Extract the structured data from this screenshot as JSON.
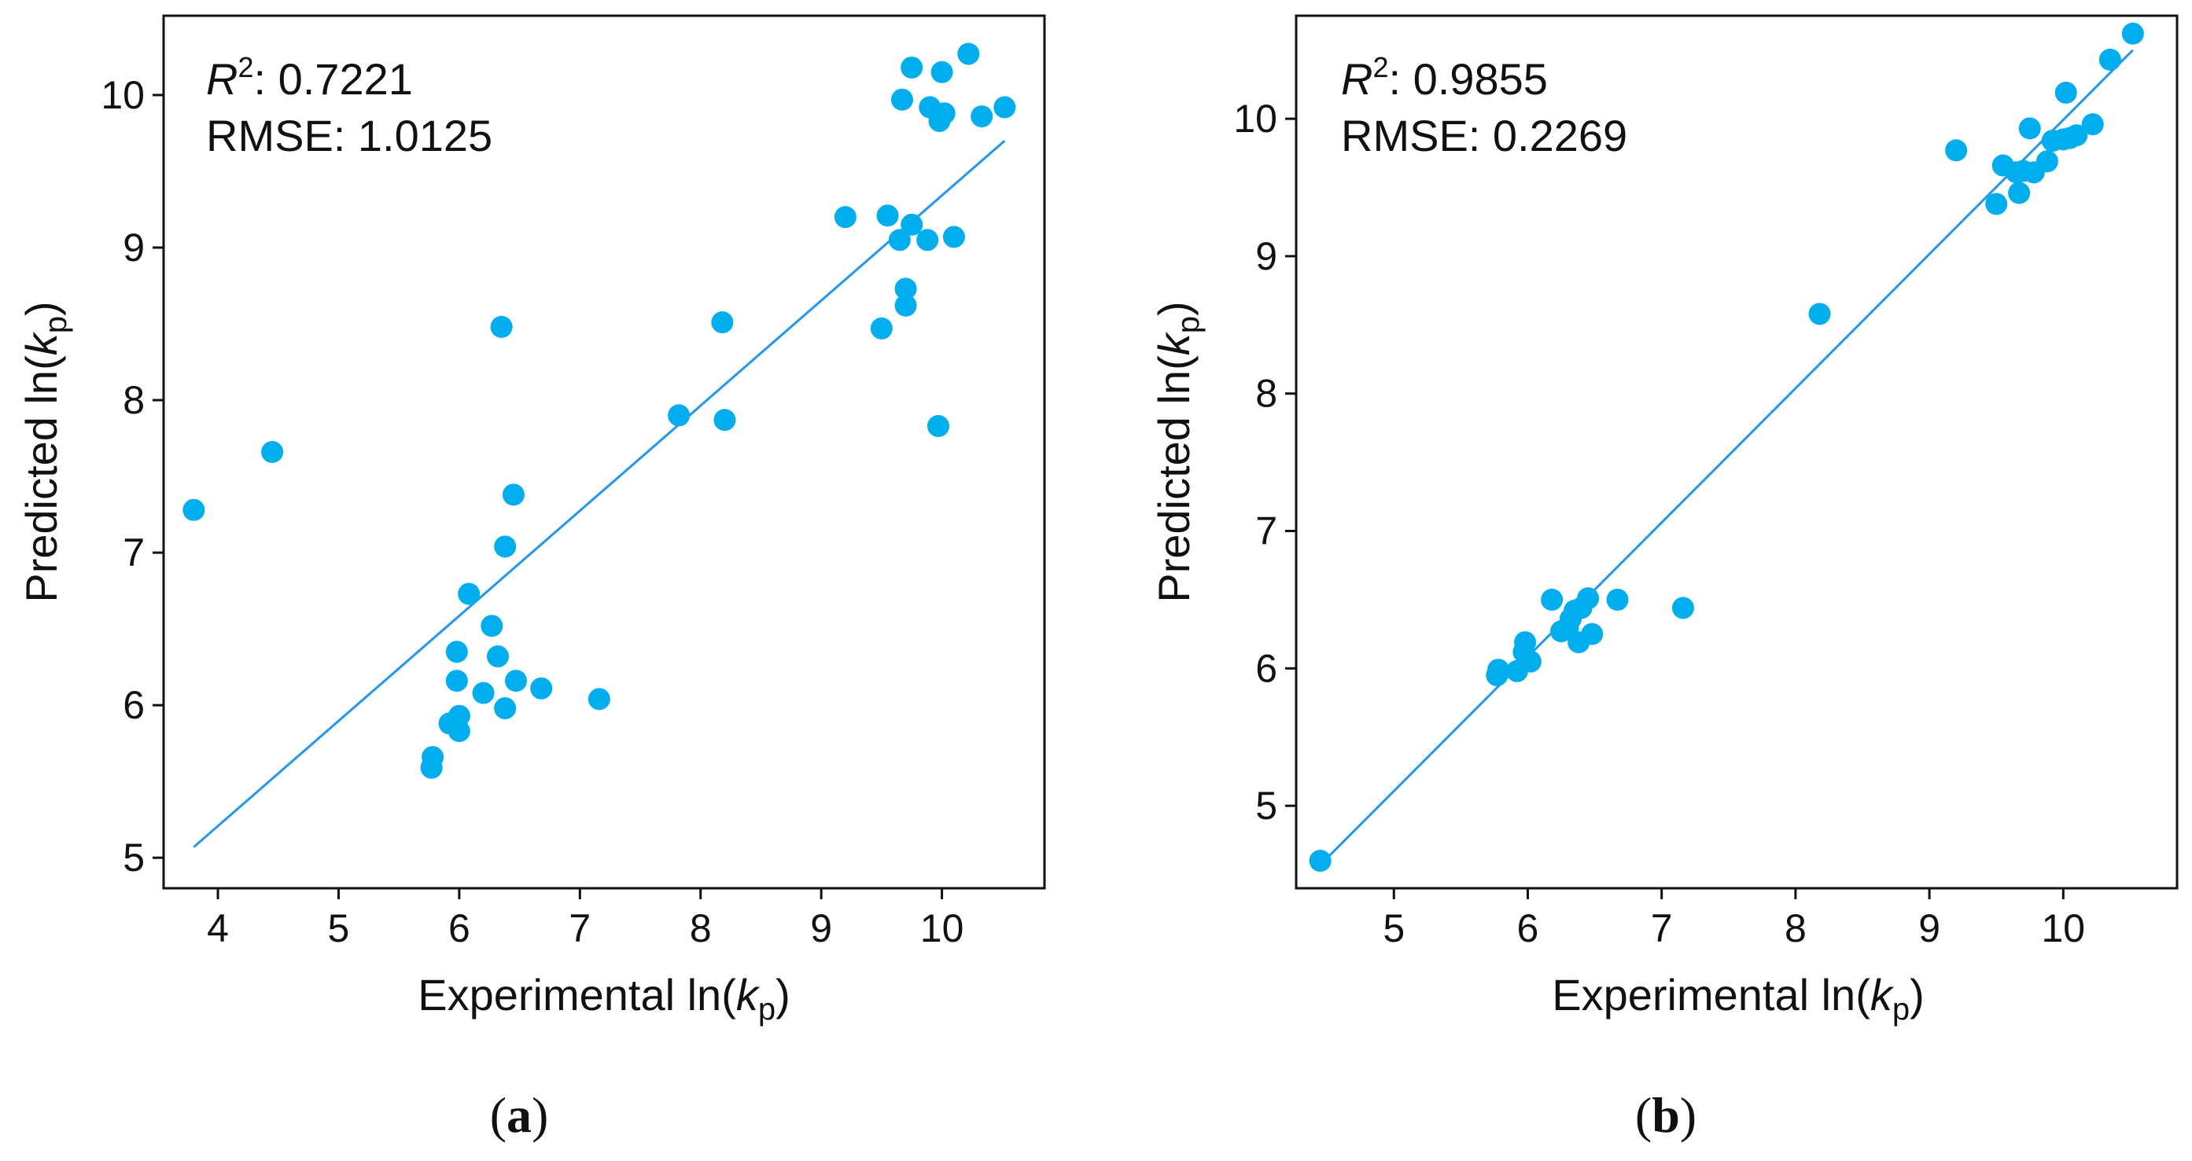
{
  "colors": {
    "point": "#00AEEF",
    "fit_line": "#2196F3",
    "axis": "#111111"
  },
  "chart_data": [
    {
      "type": "scatter",
      "panel_label": "a",
      "stats": {
        "r2_symbol": "R",
        "r2_superscript": "2",
        "r2_value": ": 0.7221",
        "rmse_text": "RMSE: 1.0125"
      },
      "xlabel": {
        "prefix": "Experimental ln(",
        "var": "k",
        "sub": "p",
        "suffix": ")"
      },
      "ylabel": {
        "prefix": "Predicted ln(",
        "var": "k",
        "sub": "p",
        "suffix": ")"
      },
      "xlim": [
        3.55,
        10.85
      ],
      "ylim": [
        4.8,
        10.52
      ],
      "xticks": [
        4,
        5,
        6,
        7,
        8,
        9,
        10
      ],
      "yticks": [
        5,
        6,
        7,
        8,
        9,
        10
      ],
      "fit_line": {
        "x": [
          3.8,
          10.52
        ],
        "y": [
          5.07,
          9.7
        ]
      },
      "points": {
        "x": [
          3.8,
          4.45,
          5.77,
          5.78,
          5.92,
          5.98,
          5.98,
          6.0,
          6.0,
          6.08,
          6.2,
          6.27,
          6.32,
          6.35,
          6.38,
          6.38,
          6.45,
          6.47,
          6.68,
          7.16,
          7.82,
          8.18,
          8.2,
          9.2,
          9.5,
          9.55,
          9.65,
          9.67,
          9.7,
          9.7,
          9.75,
          9.75,
          9.88,
          9.9,
          9.97,
          9.98,
          10.0,
          10.02,
          10.1,
          10.22,
          10.33,
          10.52
        ],
        "y": [
          7.28,
          7.66,
          5.59,
          5.66,
          5.88,
          6.35,
          6.16,
          5.83,
          5.93,
          6.73,
          6.08,
          6.52,
          6.32,
          8.48,
          5.98,
          7.04,
          7.38,
          6.16,
          6.11,
          6.04,
          7.9,
          8.51,
          7.87,
          9.2,
          8.47,
          9.21,
          9.05,
          9.97,
          8.62,
          8.73,
          9.15,
          10.18,
          9.05,
          9.92,
          7.83,
          9.83,
          10.15,
          9.88,
          9.07,
          10.27,
          9.86,
          9.92
        ]
      }
    },
    {
      "type": "scatter",
      "panel_label": "b",
      "stats": {
        "r2_symbol": "R",
        "r2_superscript": "2",
        "r2_value": ": 0.9855",
        "rmse_text": "RMSE: 0.2269"
      },
      "xlabel": {
        "prefix": "Experimental ln(",
        "var": "k",
        "sub": "p",
        "suffix": ")"
      },
      "ylabel": {
        "prefix": "Predicted ln(",
        "var": "k",
        "sub": "p",
        "suffix": ")"
      },
      "xlim": [
        4.27,
        10.85
      ],
      "ylim": [
        4.4,
        10.75
      ],
      "xticks": [
        5,
        6,
        7,
        8,
        9,
        10
      ],
      "yticks": [
        5,
        6,
        7,
        8,
        9,
        10
      ],
      "fit_line": {
        "x": [
          4.45,
          10.52
        ],
        "y": [
          4.57,
          10.5
        ]
      },
      "points": {
        "x": [
          4.45,
          5.77,
          5.78,
          5.92,
          5.97,
          5.98,
          6.02,
          6.18,
          6.25,
          6.3,
          6.32,
          6.35,
          6.38,
          6.4,
          6.45,
          6.48,
          6.67,
          7.16,
          8.18,
          9.2,
          9.5,
          9.55,
          9.65,
          9.67,
          9.7,
          9.75,
          9.78,
          9.88,
          9.92,
          10.0,
          10.02,
          10.05,
          10.1,
          10.22,
          10.35,
          10.52
        ],
        "y": [
          4.6,
          5.95,
          5.99,
          5.98,
          6.12,
          6.19,
          6.05,
          6.5,
          6.27,
          6.3,
          6.36,
          6.42,
          6.19,
          6.44,
          6.51,
          6.25,
          6.5,
          6.44,
          8.58,
          9.77,
          9.38,
          9.66,
          9.61,
          9.46,
          9.62,
          9.93,
          9.61,
          9.69,
          9.84,
          9.85,
          10.19,
          9.86,
          9.88,
          9.96,
          10.43,
          10.62
        ]
      }
    }
  ]
}
